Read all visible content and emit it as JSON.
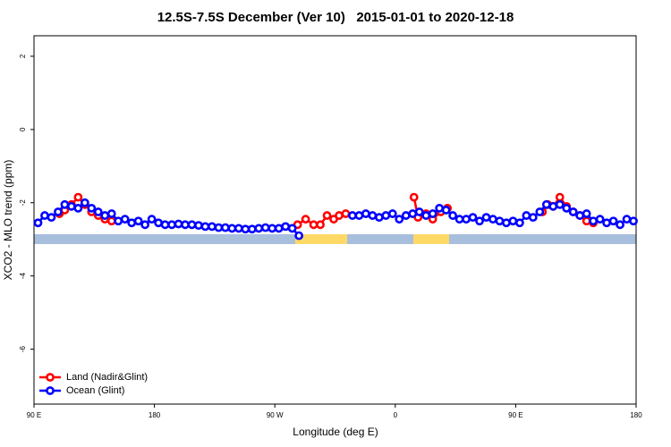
{
  "chart_data": {
    "type": "line",
    "title": "12.5S-7.5S December (Ver 10)   2015-01-01 to 2020-12-18",
    "xlabel": "Longitude (deg E)",
    "ylabel": "XCO2 - MLO trend (ppm)",
    "xlim": [
      90,
      540
    ],
    "ylim": [
      -7.5,
      2.56
    ],
    "xticks": [
      {
        "value": 90,
        "label": "90 E"
      },
      180,
      {
        "value": 270,
        "label": "90 W"
      },
      {
        "value": 360,
        "label": "0"
      },
      {
        "value": 450,
        "label": "90 E"
      },
      {
        "value": 540,
        "label": "180"
      }
    ],
    "yticks": [
      2,
      0,
      -2,
      -4,
      -6
    ],
    "legend": "bottom-left",
    "series": [
      {
        "name": "Land (Nadir&Glint)",
        "color": "#ff0000",
        "x": [
          109,
          113,
          118,
          123,
          128,
          133,
          138,
          143,
          148,
          220,
          287,
          293,
          299,
          304,
          309,
          314,
          318,
          323,
          350,
          374,
          377,
          383,
          388,
          394,
          399,
          430,
          470,
          474,
          478,
          483,
          488,
          493,
          498,
          503,
          508
        ],
        "values": [
          -2.3,
          -2.2,
          -2.05,
          -1.85,
          -2.05,
          -2.25,
          -2.35,
          -2.45,
          -2.5,
          null,
          -2.6,
          -2.45,
          -2.6,
          -2.6,
          -2.35,
          -2.45,
          -2.35,
          -2.3,
          null,
          -1.85,
          -2.4,
          -2.3,
          -2.45,
          -2.25,
          -2.15,
          null,
          -2.25,
          -2.05,
          -2.1,
          -1.85,
          -2.1,
          -2.25,
          -2.35,
          -2.5,
          -2.55
        ]
      },
      {
        "name": "Ocean (Glint)",
        "color": "#0000ff",
        "x": [
          93,
          98,
          103,
          108,
          113,
          118,
          123,
          128,
          133,
          138,
          143,
          148,
          153,
          158,
          163,
          168,
          173,
          178,
          183,
          188,
          193,
          198,
          203,
          208,
          213,
          218,
          223,
          228,
          233,
          238,
          243,
          248,
          253,
          258,
          263,
          268,
          273,
          278,
          283,
          288,
          308,
          328,
          333,
          338,
          343,
          348,
          353,
          358,
          363,
          368,
          373,
          378,
          383,
          388,
          393,
          398,
          403,
          408,
          413,
          418,
          423,
          428,
          433,
          438,
          443,
          448,
          453,
          458,
          463,
          468,
          473,
          478,
          483,
          488,
          493,
          498,
          503,
          508,
          513,
          518,
          523,
          528,
          533,
          538
        ],
        "values": [
          -2.55,
          -2.35,
          -2.4,
          -2.25,
          -2.05,
          -2.1,
          -2.15,
          -2.0,
          -2.15,
          -2.25,
          -2.35,
          -2.3,
          -2.5,
          -2.45,
          -2.55,
          -2.5,
          -2.6,
          -2.45,
          -2.55,
          -2.6,
          -2.6,
          -2.58,
          -2.6,
          -2.6,
          -2.62,
          -2.65,
          -2.65,
          -2.68,
          -2.68,
          -2.7,
          -2.7,
          -2.72,
          -2.72,
          -2.7,
          -2.68,
          -2.7,
          -2.7,
          -2.65,
          -2.7,
          -2.9,
          null,
          -2.35,
          -2.35,
          -2.3,
          -2.35,
          -2.4,
          -2.35,
          -2.3,
          -2.45,
          -2.35,
          -2.3,
          -2.25,
          -2.35,
          -2.3,
          -2.15,
          -2.2,
          -2.35,
          -2.45,
          -2.45,
          -2.4,
          -2.5,
          -2.4,
          -2.45,
          -2.5,
          -2.55,
          -2.5,
          -2.55,
          -2.35,
          -2.4,
          -2.25,
          -2.05,
          -2.1,
          -2.05,
          -2.15,
          -2.25,
          -2.35,
          -2.3,
          -2.5,
          -2.45,
          -2.55,
          -2.5,
          -2.6,
          -2.45,
          -2.5
        ]
      }
    ]
  }
}
